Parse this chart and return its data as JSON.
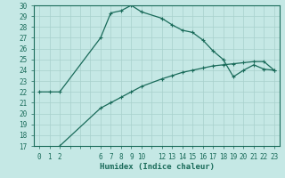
{
  "xlabel": "Humidex (Indice chaleur)",
  "bg_color": "#c5e8e5",
  "grid_color": "#a8d0cc",
  "line_color": "#1a6b5a",
  "xlim": [
    -0.5,
    23.5
  ],
  "ylim": [
    17,
    30
  ],
  "yticks": [
    17,
    18,
    19,
    20,
    21,
    22,
    23,
    24,
    25,
    26,
    27,
    28,
    29,
    30
  ],
  "xticks_all": [
    0,
    1,
    2,
    3,
    4,
    5,
    6,
    7,
    8,
    9,
    10,
    11,
    12,
    13,
    14,
    15,
    16,
    17,
    18,
    19,
    20,
    21,
    22,
    23
  ],
  "xtick_labels_show": [
    0,
    1,
    2,
    6,
    7,
    8,
    9,
    10,
    12,
    13,
    14,
    15,
    16,
    17,
    18,
    19,
    20,
    21,
    22,
    23
  ],
  "line1_x": [
    0,
    1,
    2,
    6,
    7,
    8,
    9,
    10,
    12,
    13,
    14,
    15,
    16,
    17,
    18,
    19,
    20,
    21,
    22,
    23
  ],
  "line1_y": [
    22,
    22,
    22,
    27,
    29.3,
    29.5,
    30,
    29.4,
    28.8,
    28.2,
    27.7,
    27.5,
    26.8,
    25.8,
    25.0,
    23.4,
    24.0,
    24.5,
    24.1,
    24.0
  ],
  "line2_x": [
    2,
    6,
    7,
    8,
    9,
    10,
    12,
    13,
    14,
    15,
    16,
    17,
    18,
    19,
    20,
    21,
    22,
    23
  ],
  "line2_y": [
    17,
    20.5,
    21.0,
    21.5,
    22.0,
    22.5,
    23.2,
    23.5,
    23.8,
    24.0,
    24.2,
    24.4,
    24.5,
    24.6,
    24.7,
    24.8,
    24.8,
    24.0
  ],
  "font_family": "monospace",
  "tick_fontsize": 5.5,
  "xlabel_fontsize": 6.5
}
